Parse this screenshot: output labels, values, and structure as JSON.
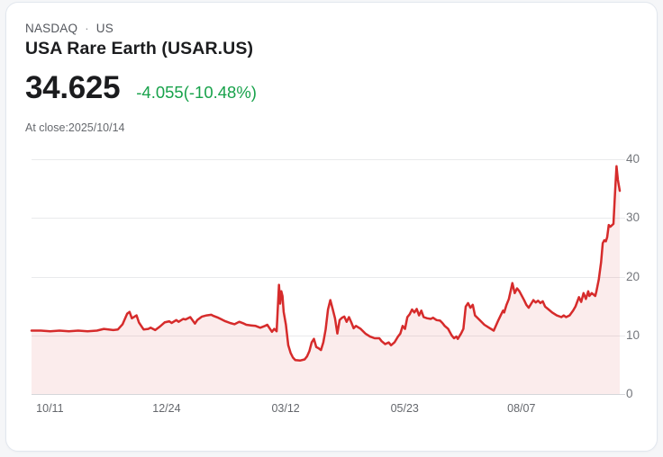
{
  "header": {
    "exchange": "NASDAQ",
    "separator": "·",
    "region": "US",
    "title": "USA Rare Earth (USAR.US)"
  },
  "quote": {
    "price": "34.625",
    "change_text": "-4.055(-10.48%)",
    "change_color": "#18a24b",
    "close_note": "At close:2025/10/14"
  },
  "colors": {
    "line": "#d62b2b",
    "area_fill": "rgba(214,43,43,0.09)",
    "grid": "#e9eaec",
    "zero_axis": "#d5d7da",
    "axis_text": "#6d7075",
    "title_text": "#1c1d1f",
    "card_background": "#ffffff"
  },
  "chart_data": {
    "type": "area",
    "title": "USAR.US one-year daily close price",
    "xlabel": "",
    "ylabel": "",
    "x_range": [
      0,
      252
    ],
    "ylim": [
      0,
      40
    ],
    "y_ticks": [
      0,
      10,
      20,
      30,
      40
    ],
    "x_ticks": [
      {
        "day": 4,
        "label": "10/11"
      },
      {
        "day": 54,
        "label": "12/24"
      },
      {
        "day": 105,
        "label": "03/12"
      },
      {
        "day": 156,
        "label": "05/23"
      },
      {
        "day": 206,
        "label": "08/07"
      }
    ],
    "grid": "horizontal",
    "legend_position": "none",
    "series": [
      {
        "name": "USAR.US",
        "points": [
          [
            0,
            10.8
          ],
          [
            4,
            10.8
          ],
          [
            8,
            10.7
          ],
          [
            12,
            10.8
          ],
          [
            16,
            10.7
          ],
          [
            20,
            10.8
          ],
          [
            24,
            10.7
          ],
          [
            28,
            10.8
          ],
          [
            31,
            11.1
          ],
          [
            33,
            11.0
          ],
          [
            35,
            10.9
          ],
          [
            37,
            11.0
          ],
          [
            39,
            11.9
          ],
          [
            41,
            13.7
          ],
          [
            42,
            14.0
          ],
          [
            43,
            12.9
          ],
          [
            45,
            13.4
          ],
          [
            46,
            12.2
          ],
          [
            48,
            11.0
          ],
          [
            50,
            11.1
          ],
          [
            51,
            11.3
          ],
          [
            53,
            10.9
          ],
          [
            55,
            11.5
          ],
          [
            57,
            12.2
          ],
          [
            59,
            12.4
          ],
          [
            60,
            12.1
          ],
          [
            62,
            12.6
          ],
          [
            63,
            12.3
          ],
          [
            65,
            12.8
          ],
          [
            66,
            12.7
          ],
          [
            68,
            13.1
          ],
          [
            70,
            12.0
          ],
          [
            71,
            12.6
          ],
          [
            73,
            13.2
          ],
          [
            75,
            13.4
          ],
          [
            77,
            13.5
          ],
          [
            78,
            13.3
          ],
          [
            80,
            13.0
          ],
          [
            81,
            12.8
          ],
          [
            83,
            12.4
          ],
          [
            85,
            12.1
          ],
          [
            87,
            11.9
          ],
          [
            89,
            12.3
          ],
          [
            91,
            12.0
          ],
          [
            92,
            11.8
          ],
          [
            94,
            11.7
          ],
          [
            96,
            11.6
          ],
          [
            98,
            11.3
          ],
          [
            100,
            11.6
          ],
          [
            101,
            11.8
          ],
          [
            102,
            11.2
          ],
          [
            103,
            10.6
          ],
          [
            104,
            11.1
          ],
          [
            105,
            10.7
          ],
          [
            106,
            18.6
          ],
          [
            106.5,
            15.4
          ],
          [
            107,
            17.5
          ],
          [
            107.5,
            16.7
          ],
          [
            108,
            14.0
          ],
          [
            109,
            11.8
          ],
          [
            110,
            8.3
          ],
          [
            111,
            7.0
          ],
          [
            112,
            6.2
          ],
          [
            113,
            5.8
          ],
          [
            115,
            5.7
          ],
          [
            117,
            5.9
          ],
          [
            118,
            6.4
          ],
          [
            119,
            7.3
          ],
          [
            120,
            8.8
          ],
          [
            121,
            9.4
          ],
          [
            122,
            8.0
          ],
          [
            123,
            7.8
          ],
          [
            124,
            7.5
          ],
          [
            125,
            8.8
          ],
          [
            126,
            11.0
          ],
          [
            127,
            14.4
          ],
          [
            128,
            16.0
          ],
          [
            129,
            14.5
          ],
          [
            130,
            12.9
          ],
          [
            131,
            10.3
          ],
          [
            132,
            12.6
          ],
          [
            133,
            13.0
          ],
          [
            134,
            13.2
          ],
          [
            135,
            12.3
          ],
          [
            136,
            13.1
          ],
          [
            137,
            12.2
          ],
          [
            138,
            11.2
          ],
          [
            139,
            11.6
          ],
          [
            141,
            11.1
          ],
          [
            143,
            10.3
          ],
          [
            145,
            9.8
          ],
          [
            147,
            9.5
          ],
          [
            149,
            9.5
          ],
          [
            150,
            9.0
          ],
          [
            151.5,
            8.5
          ],
          [
            153,
            8.8
          ],
          [
            154,
            8.3
          ],
          [
            155.5,
            8.8
          ],
          [
            157,
            9.8
          ],
          [
            158,
            10.3
          ],
          [
            159,
            11.6
          ],
          [
            160,
            11.1
          ],
          [
            161,
            13.1
          ],
          [
            162,
            13.6
          ],
          [
            163,
            14.4
          ],
          [
            164,
            13.9
          ],
          [
            165,
            14.5
          ],
          [
            166,
            13.4
          ],
          [
            167,
            14.2
          ],
          [
            168,
            13.1
          ],
          [
            169.5,
            12.9
          ],
          [
            171,
            12.8
          ],
          [
            172,
            13.0
          ],
          [
            173.5,
            12.6
          ],
          [
            175,
            12.5
          ],
          [
            176,
            12.1
          ],
          [
            177,
            11.6
          ],
          [
            178.5,
            11.1
          ],
          [
            180,
            10.0
          ],
          [
            181,
            9.5
          ],
          [
            182,
            9.8
          ],
          [
            182.6,
            9.4
          ],
          [
            184,
            10.3
          ],
          [
            185,
            11.1
          ],
          [
            186,
            14.9
          ],
          [
            187,
            15.5
          ],
          [
            188,
            14.7
          ],
          [
            189,
            15.2
          ],
          [
            190,
            13.4
          ],
          [
            192,
            12.6
          ],
          [
            194,
            11.8
          ],
          [
            196,
            11.3
          ],
          [
            198,
            10.8
          ],
          [
            200,
            12.6
          ],
          [
            201,
            13.4
          ],
          [
            202,
            14.2
          ],
          [
            202.5,
            13.9
          ],
          [
            203.5,
            15.2
          ],
          [
            204.5,
            16.2
          ],
          [
            206,
            18.9
          ],
          [
            207,
            17.2
          ],
          [
            208,
            18.0
          ],
          [
            209,
            17.5
          ],
          [
            211,
            16.0
          ],
          [
            212,
            15.2
          ],
          [
            213,
            14.7
          ],
          [
            215,
            16.0
          ],
          [
            216,
            15.6
          ],
          [
            217,
            15.9
          ],
          [
            218,
            15.5
          ],
          [
            219,
            15.8
          ],
          [
            220,
            14.9
          ],
          [
            221.5,
            14.4
          ],
          [
            223,
            13.9
          ],
          [
            225,
            13.4
          ],
          [
            227,
            13.1
          ],
          [
            228,
            13.4
          ],
          [
            229,
            13.1
          ],
          [
            230.5,
            13.4
          ],
          [
            232,
            14.2
          ],
          [
            233,
            14.9
          ],
          [
            234.5,
            16.5
          ],
          [
            235.5,
            15.7
          ],
          [
            236.5,
            17.2
          ],
          [
            237.5,
            16.2
          ],
          [
            238.5,
            17.5
          ],
          [
            239,
            16.7
          ],
          [
            240,
            17.2
          ],
          [
            241.5,
            16.7
          ],
          [
            242,
            17.5
          ],
          [
            243,
            19.5
          ],
          [
            244,
            22.5
          ],
          [
            244.7,
            25.7
          ],
          [
            245.4,
            26.2
          ],
          [
            246,
            26.0
          ],
          [
            246.6,
            26.7
          ],
          [
            247.3,
            28.8
          ],
          [
            248,
            28.5
          ],
          [
            249.3,
            29.0
          ],
          [
            250,
            34.4
          ],
          [
            250.6,
            38.8
          ],
          [
            251.2,
            36.5
          ],
          [
            252,
            34.625
          ]
        ]
      }
    ]
  }
}
